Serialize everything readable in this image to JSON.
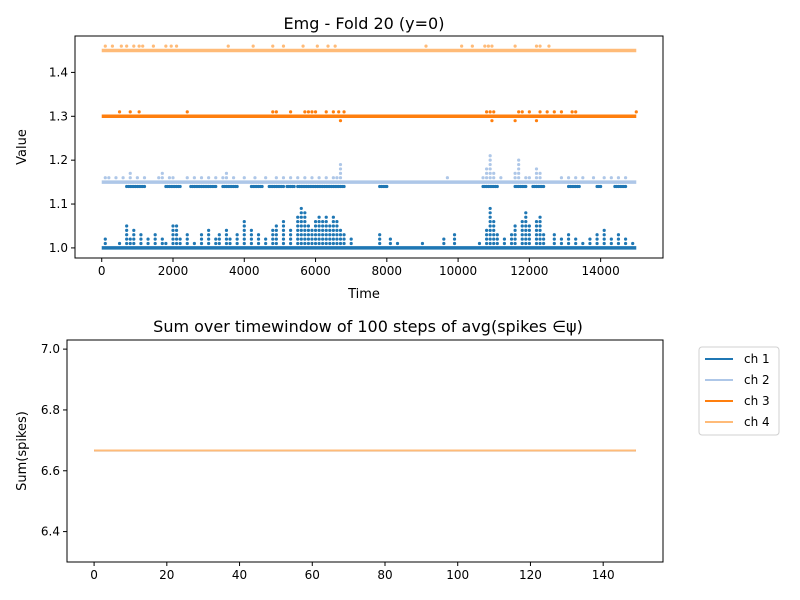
{
  "chart_data": [
    {
      "type": "scatter",
      "title": "Emg - Fold 20 (y=0)",
      "xlabel": "Time",
      "ylabel": "Value",
      "xlim": [
        -750,
        15750
      ],
      "ylim": [
        0.977,
        1.483
      ],
      "xticks": [
        0,
        2000,
        4000,
        6000,
        8000,
        10000,
        12000,
        14000
      ],
      "xtick_labels": [
        "0",
        "2000",
        "4000",
        "6000",
        "8000",
        "10000",
        "12000",
        "14000"
      ],
      "yticks": [
        1.0,
        1.1,
        1.2,
        1.3,
        1.4
      ],
      "ytick_labels": [
        "1.0",
        "1.1",
        "1.2",
        "1.3",
        "1.4"
      ],
      "grid": false,
      "series": [
        {
          "color": "#1f77b4",
          "baseline": 1.0,
          "x_range": [
            0,
            15000
          ],
          "outliers": [
            [
              100,
              1.02
            ],
            [
              500,
              1.01
            ],
            [
              700,
              1.05
            ],
            [
              800,
              1.02
            ],
            [
              900,
              1.04
            ],
            [
              1100,
              1.03
            ],
            [
              1300,
              1.02
            ],
            [
              1500,
              1.03
            ],
            [
              1700,
              1.02
            ],
            [
              1800,
              1.01
            ],
            [
              2000,
              1.05
            ],
            [
              2100,
              1.05
            ],
            [
              2200,
              1.02
            ],
            [
              2400,
              1.03
            ],
            [
              2600,
              1.01
            ],
            [
              2800,
              1.03
            ],
            [
              3000,
              1.04
            ],
            [
              3200,
              1.02
            ],
            [
              3300,
              1.03
            ],
            [
              3500,
              1.04
            ],
            [
              3600,
              1.02
            ],
            [
              3800,
              1.03
            ],
            [
              4000,
              1.06
            ],
            [
              4200,
              1.04
            ],
            [
              4400,
              1.03
            ],
            [
              4600,
              1.02
            ],
            [
              4800,
              1.04
            ],
            [
              4900,
              1.05
            ],
            [
              5100,
              1.06
            ],
            [
              5300,
              1.04
            ],
            [
              5500,
              1.07
            ],
            [
              5600,
              1.09
            ],
            [
              5700,
              1.08
            ],
            [
              5800,
              1.05
            ],
            [
              5900,
              1.04
            ],
            [
              6000,
              1.06
            ],
            [
              6100,
              1.07
            ],
            [
              6200,
              1.06
            ],
            [
              6300,
              1.07
            ],
            [
              6400,
              1.05
            ],
            [
              6500,
              1.07
            ],
            [
              6600,
              1.06
            ],
            [
              6700,
              1.04
            ],
            [
              6800,
              1.03
            ],
            [
              7000,
              1.02
            ],
            [
              7800,
              1.03
            ],
            [
              8100,
              1.02
            ],
            [
              8300,
              1.01
            ],
            [
              9000,
              1.01
            ],
            [
              9600,
              1.02
            ],
            [
              9900,
              1.03
            ],
            [
              10600,
              1.01
            ],
            [
              10800,
              1.04
            ],
            [
              10900,
              1.09
            ],
            [
              11000,
              1.06
            ],
            [
              11100,
              1.03
            ],
            [
              11300,
              1.02
            ],
            [
              11500,
              1.03
            ],
            [
              11600,
              1.05
            ],
            [
              11800,
              1.06
            ],
            [
              11900,
              1.08
            ],
            [
              12000,
              1.05
            ],
            [
              12200,
              1.06
            ],
            [
              12300,
              1.07
            ],
            [
              12400,
              1.03
            ],
            [
              12700,
              1.03
            ],
            [
              12900,
              1.02
            ],
            [
              13100,
              1.03
            ],
            [
              13300,
              1.02
            ],
            [
              13500,
              1.01
            ],
            [
              13700,
              1.02
            ],
            [
              13900,
              1.03
            ],
            [
              14100,
              1.04
            ],
            [
              14300,
              1.02
            ],
            [
              14500,
              1.03
            ],
            [
              14700,
              1.02
            ],
            [
              14900,
              1.01
            ]
          ]
        },
        {
          "color": "#aec7e8",
          "baseline": 1.15,
          "x_range": [
            0,
            15000
          ],
          "outliers": [
            [
              100,
              1.16
            ],
            [
              200,
              1.16
            ],
            [
              400,
              1.16
            ],
            [
              600,
              1.16
            ],
            [
              800,
              1.17
            ],
            [
              1000,
              1.16
            ],
            [
              1200,
              1.16
            ],
            [
              1600,
              1.16
            ],
            [
              1700,
              1.17
            ],
            [
              1900,
              1.16
            ],
            [
              2000,
              1.16
            ],
            [
              2400,
              1.16
            ],
            [
              2600,
              1.16
            ],
            [
              2800,
              1.16
            ],
            [
              3000,
              1.16
            ],
            [
              3200,
              1.16
            ],
            [
              3400,
              1.16
            ],
            [
              3500,
              1.17
            ],
            [
              3700,
              1.16
            ],
            [
              4000,
              1.16
            ],
            [
              4300,
              1.16
            ],
            [
              4600,
              1.16
            ],
            [
              4900,
              1.16
            ],
            [
              5100,
              1.16
            ],
            [
              5300,
              1.16
            ],
            [
              5500,
              1.16
            ],
            [
              5700,
              1.16
            ],
            [
              5900,
              1.16
            ],
            [
              6100,
              1.16
            ],
            [
              6300,
              1.16
            ],
            [
              6500,
              1.16
            ],
            [
              6600,
              1.16
            ],
            [
              6700,
              1.19
            ],
            [
              9700,
              1.16
            ],
            [
              10700,
              1.16
            ],
            [
              10800,
              1.18
            ],
            [
              10900,
              1.21
            ],
            [
              11000,
              1.17
            ],
            [
              11200,
              1.16
            ],
            [
              11600,
              1.17
            ],
            [
              11700,
              1.2
            ],
            [
              11900,
              1.16
            ],
            [
              12000,
              1.16
            ],
            [
              12200,
              1.18
            ],
            [
              12300,
              1.17
            ],
            [
              12900,
              1.16
            ],
            [
              13100,
              1.16
            ],
            [
              13300,
              1.16
            ],
            [
              13500,
              1.16
            ],
            [
              13800,
              1.16
            ],
            [
              14100,
              1.16
            ],
            [
              14300,
              1.16
            ],
            [
              14500,
              1.16
            ],
            [
              14700,
              1.16
            ]
          ],
          "low_clusters": [
            [
              700,
              1200
            ],
            [
              1800,
              2200
            ],
            [
              2500,
              3200
            ],
            [
              3400,
              3800
            ],
            [
              4200,
              4500
            ],
            [
              4700,
              5100
            ],
            [
              5200,
              5400
            ],
            [
              5500,
              6800
            ],
            [
              7800,
              8000
            ],
            [
              10700,
              11100
            ],
            [
              11600,
              11900
            ],
            [
              12100,
              12400
            ],
            [
              13100,
              13400
            ],
            [
              13900,
              14000
            ],
            [
              14400,
              14700
            ]
          ],
          "low_value": 1.14
        },
        {
          "color": "#ff7f0e",
          "baseline": 1.3,
          "x_range": [
            0,
            15000
          ],
          "outliers": [
            [
              500,
              1.31
            ],
            [
              800,
              1.31
            ],
            [
              1050,
              1.31
            ],
            [
              2400,
              1.31
            ],
            [
              4800,
              1.31
            ],
            [
              4900,
              1.31
            ],
            [
              5300,
              1.31
            ],
            [
              5700,
              1.31
            ],
            [
              5800,
              1.31
            ],
            [
              5900,
              1.31
            ],
            [
              6000,
              1.31
            ],
            [
              6300,
              1.31
            ],
            [
              6500,
              1.31
            ],
            [
              6650,
              1.31
            ],
            [
              6700,
              1.29
            ],
            [
              6800,
              1.31
            ],
            [
              10800,
              1.31
            ],
            [
              10900,
              1.31
            ],
            [
              10950,
              1.29
            ],
            [
              11000,
              1.31
            ],
            [
              11600,
              1.29
            ],
            [
              11700,
              1.31
            ],
            [
              11800,
              1.31
            ],
            [
              12000,
              1.31
            ],
            [
              12200,
              1.29
            ],
            [
              12300,
              1.31
            ],
            [
              12500,
              1.31
            ],
            [
              12700,
              1.31
            ],
            [
              12900,
              1.31
            ],
            [
              13200,
              1.31
            ],
            [
              13300,
              1.31
            ],
            [
              15000,
              1.31
            ]
          ]
        },
        {
          "color": "#ffbb78",
          "baseline": 1.45,
          "x_range": [
            0,
            15000
          ],
          "outliers": [
            [
              100,
              1.46
            ],
            [
              300,
              1.46
            ],
            [
              550,
              1.46
            ],
            [
              700,
              1.46
            ],
            [
              900,
              1.46
            ],
            [
              1050,
              1.46
            ],
            [
              1150,
              1.46
            ],
            [
              1450,
              1.46
            ],
            [
              1800,
              1.46
            ],
            [
              1950,
              1.46
            ],
            [
              2100,
              1.46
            ],
            [
              3550,
              1.46
            ],
            [
              4250,
              1.46
            ],
            [
              4800,
              1.46
            ],
            [
              5100,
              1.46
            ],
            [
              5650,
              1.46
            ],
            [
              6050,
              1.46
            ],
            [
              6350,
              1.46
            ],
            [
              6550,
              1.46
            ],
            [
              9100,
              1.46
            ],
            [
              10100,
              1.46
            ],
            [
              10400,
              1.46
            ],
            [
              10750,
              1.46
            ],
            [
              10850,
              1.46
            ],
            [
              10950,
              1.46
            ],
            [
              11600,
              1.46
            ],
            [
              12200,
              1.46
            ],
            [
              12300,
              1.46
            ],
            [
              12550,
              1.46
            ]
          ]
        }
      ]
    },
    {
      "type": "line",
      "title": "Sum over timewindow of 100 steps of avg(spikes ∈ψ)",
      "xlabel": "",
      "ylabel": "Sum(spikes)",
      "xlim": [
        -7.45,
        156.45
      ],
      "ylim": [
        6.3,
        7.03
      ],
      "xticks": [
        0,
        20,
        40,
        60,
        80,
        100,
        120,
        140
      ],
      "xtick_labels": [
        "0",
        "20",
        "40",
        "60",
        "80",
        "100",
        "120",
        "140"
      ],
      "yticks": [
        6.4,
        6.6,
        6.8,
        7.0
      ],
      "ytick_labels": [
        "6.4",
        "6.6",
        "6.8",
        "7.0"
      ],
      "grid": false,
      "legend_position": "outside-top-right",
      "x": [
        0,
        149
      ],
      "series": [
        {
          "name": "ch 1",
          "color": "#1f77b4",
          "values": [
            6.667,
            6.667
          ]
        },
        {
          "name": "ch 2",
          "color": "#aec7e8",
          "values": [
            6.667,
            6.667
          ]
        },
        {
          "name": "ch 3",
          "color": "#ff7f0e",
          "values": [
            6.667,
            6.667
          ]
        },
        {
          "name": "ch 4",
          "color": "#ffbb78",
          "values": [
            6.667,
            6.667
          ]
        }
      ]
    }
  ]
}
